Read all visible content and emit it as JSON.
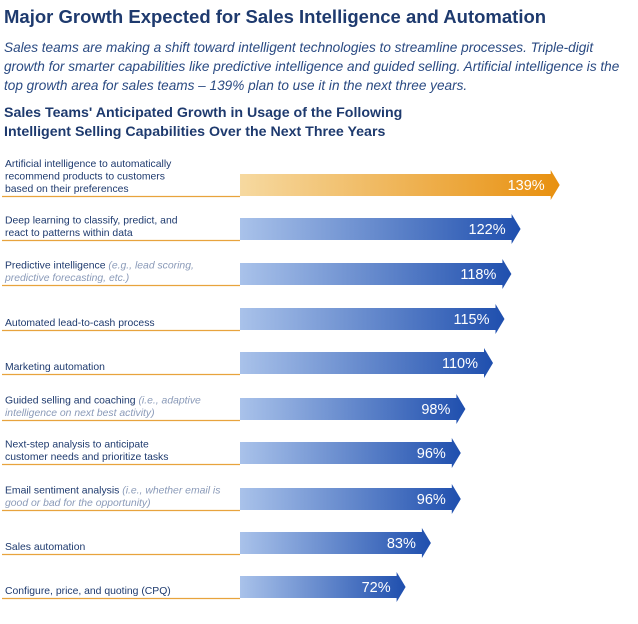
{
  "headline": "Major Growth Expected for Sales Intelligence and Automation",
  "intro": "Sales teams are making a shift toward intelligent technologies to streamline processes. Triple-digit growth for smarter capabilities like predictive intelligence and guided selling. Artificial intelligence is the top growth area for sales teams – 139% plan to use it in the next three years.",
  "chart_data": {
    "type": "bar",
    "orientation": "horizontal",
    "title_lines": [
      "Sales Teams' Anticipated Growth in Usage of the Following",
      "Intelligent Selling Capabilities Over the Next Three Years"
    ],
    "categories": [
      {
        "lines": [
          "Artificial intelligence to automatically",
          "recommend products to customers",
          "based on their preferences"
        ],
        "note": []
      },
      {
        "lines": [
          "Deep learning to classify, predict, and",
          "react to patterns within data"
        ],
        "note": []
      },
      {
        "lines": [
          "Predictive intelligence"
        ],
        "note": [
          "(e.g., lead scoring,",
          "predictive forecasting, etc.)"
        ]
      },
      {
        "lines": [
          "Automated lead-to-cash process"
        ],
        "note": []
      },
      {
        "lines": [
          "Marketing automation"
        ],
        "note": []
      },
      {
        "lines": [
          "Guided selling and coaching"
        ],
        "note": [
          "(i.e., adaptive",
          "intelligence on next best activity)"
        ]
      },
      {
        "lines": [
          "Next-step analysis to anticipate",
          "customer needs and prioritize tasks"
        ],
        "note": []
      },
      {
        "lines": [
          "Email sentiment analysis"
        ],
        "note": [
          "(i.e., whether email is",
          "good or bad for the opportunity)"
        ]
      },
      {
        "lines": [
          "Sales automation"
        ],
        "note": []
      },
      {
        "lines": [
          "Configure, price, and quoting (CPQ)"
        ],
        "note": []
      }
    ],
    "values": [
      139,
      122,
      118,
      115,
      110,
      98,
      96,
      96,
      83,
      72
    ],
    "value_labels": [
      "139%",
      "122%",
      "118%",
      "115%",
      "110%",
      "98%",
      "96%",
      "96%",
      "83%",
      "72%"
    ],
    "highlight_index": 0,
    "colors": {
      "highlight_start": "#f6d9a0",
      "highlight_end": "#e8900f",
      "bar_start": "#a9c2ea",
      "bar_end": "#1f4fae",
      "underline": "#e8a33d",
      "label": "#1e3a6e",
      "note": "#8a9ab8",
      "value_text": "#ffffff"
    },
    "grid": false,
    "legend": "none"
  }
}
